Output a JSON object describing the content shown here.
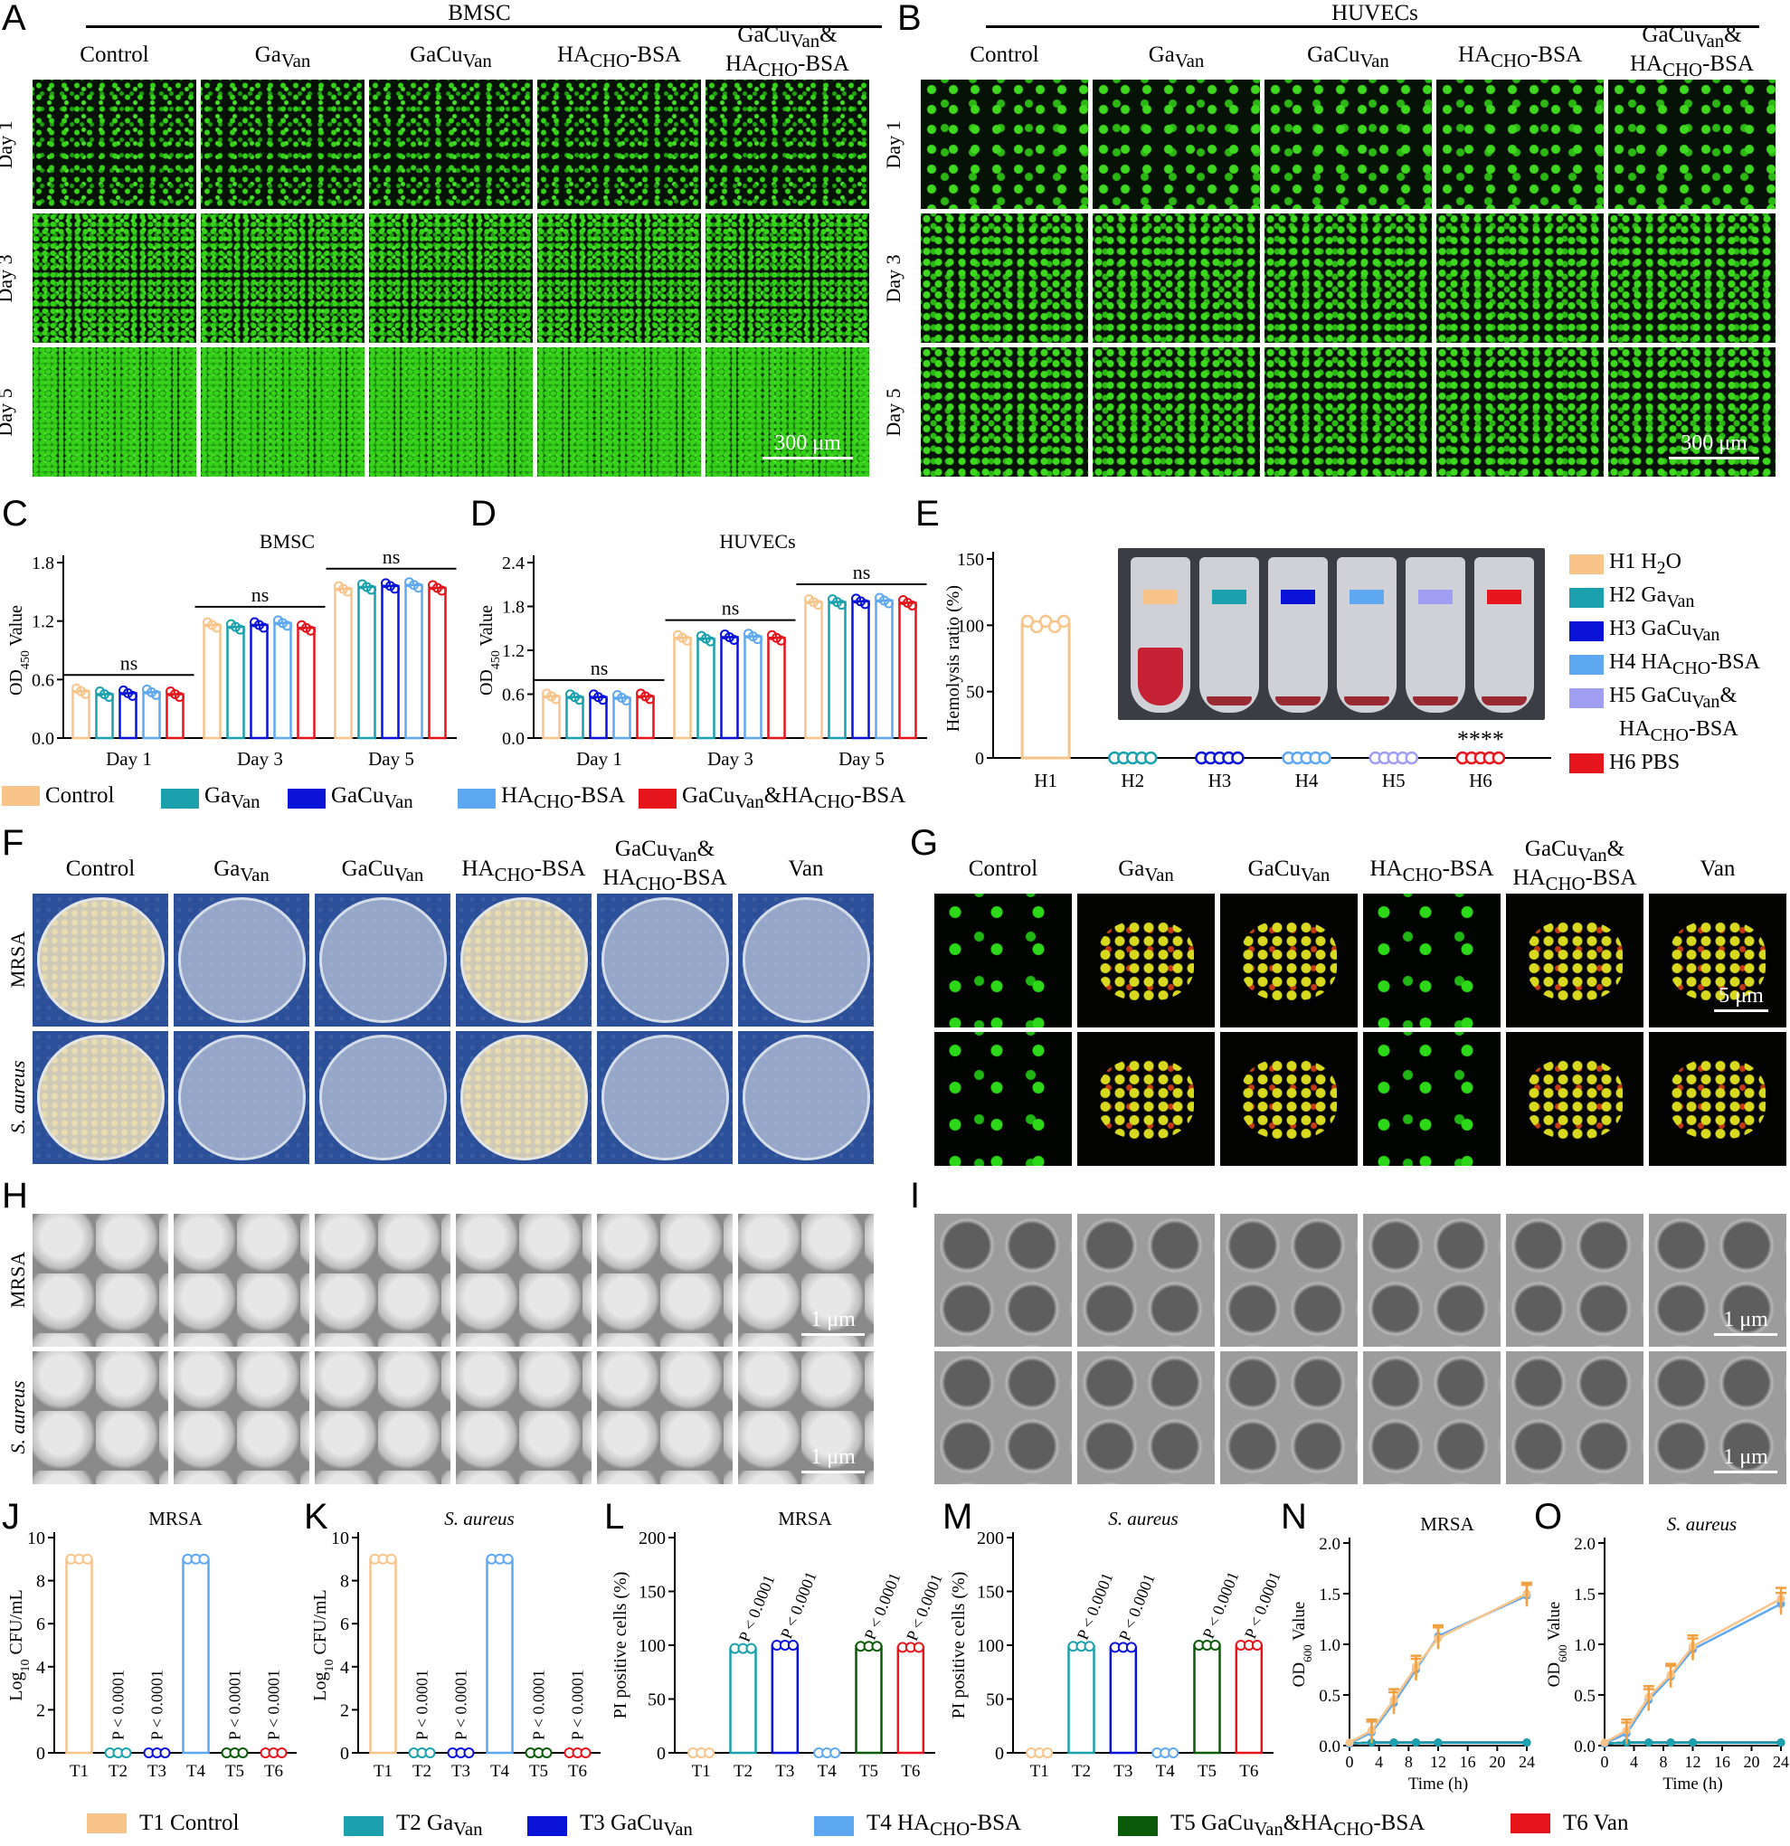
{
  "panels": {
    "A": "A",
    "B": "B",
    "C": "C",
    "D": "D",
    "E": "E",
    "F": "F",
    "G": "G",
    "H": "H",
    "I": "I",
    "J": "J",
    "K": "K",
    "L": "L",
    "M": "M",
    "N": "N",
    "O": "O"
  },
  "panelA": {
    "title": "BMSC",
    "columns": [
      "Control",
      "Ga",
      "GaCu",
      "HA",
      "GaCu&HA"
    ],
    "col_html": [
      "Control",
      "Ga<sub>Van</sub>",
      "GaCu<sub>Van</sub>",
      "HA<sub>CHO</sub>-BSA",
      "GaCu<sub>Van</sub>&amp;<br>HA<sub>CHO</sub>-BSA"
    ],
    "rows": [
      "Day 1",
      "Day 3",
      "Day 5"
    ],
    "scale": "300 μm"
  },
  "panelB": {
    "title": "HUVECs",
    "rows": [
      "Day 1",
      "Day 3",
      "Day 5"
    ],
    "scale": "300 μm"
  },
  "panelC": {
    "title": "BMSC",
    "ylabel": "OD450 Value",
    "ylabel_main": "OD",
    "ylabel_sub": "450",
    "ylabel_tail": " Value",
    "ticks": [
      "0.0",
      "0.6",
      "1.2",
      "1.8"
    ],
    "groups": [
      "Day 1",
      "Day 3",
      "Day 5"
    ],
    "sig": [
      "ns",
      "ns",
      "ns"
    ]
  },
  "panelD": {
    "title": "HUVECs",
    "ticks": [
      "0.0",
      "0.6",
      "1.2",
      "1.8",
      "2.4"
    ],
    "groups": [
      "Day 1",
      "Day 3",
      "Day 5"
    ],
    "sig": [
      "ns",
      "ns",
      "ns"
    ]
  },
  "legendCD": {
    "items": [
      "Control",
      "Ga",
      "GaCu",
      "HA",
      "GaCu&HA"
    ],
    "colors": [
      "#f8c48a",
      "#1aa1ad",
      "#0a12d8",
      "#5ea8f2",
      "#e6141b"
    ]
  },
  "panelE": {
    "ylabel": "Hemolysis ratio (%)",
    "ticks": [
      "0",
      "50",
      "100",
      "150"
    ],
    "categories": [
      "H1",
      "H2",
      "H3",
      "H4",
      "H5",
      "H6"
    ],
    "sig": "****",
    "legend_html": [
      "H1 H<sub>2</sub>O",
      "H2 Ga<sub>Van</sub>",
      "H3 GaCu<sub>Van</sub>",
      "H4 HA<sub>CHO</sub>-BSA",
      "H5 GaCu<sub>Van</sub>&amp;",
      "HA<sub>CHO</sub>-BSA",
      "H6 PBS"
    ],
    "colors": [
      "#f8c48a",
      "#1aa1ad",
      "#0a12d8",
      "#5ea8f2",
      "#a09ef2",
      "#e6141b"
    ]
  },
  "panelF": {
    "columns_html": [
      "Control",
      "Ga<sub>Van</sub>",
      "GaCu<sub>Van</sub>",
      "HA<sub>CHO</sub>-BSA",
      "GaCu<sub>Van</sub>&amp;<br>HA<sub>CHO</sub>-BSA",
      "Van"
    ],
    "rows": [
      "MRSA",
      "S. aureus"
    ]
  },
  "panelG": {
    "scale": "5 μm"
  },
  "panelH": {
    "scale": "1 μm",
    "rows": [
      "MRSA",
      "S. aureus"
    ]
  },
  "panelI": {
    "scale": "1 μm"
  },
  "panelJ": {
    "title": "MRSA",
    "ylabel": "Log10 CFU/mL"
  },
  "panelK": {
    "title": "S. aureus"
  },
  "panelL": {
    "title": "MRSA",
    "ylabel": "PI positive cells (%)"
  },
  "panelM": {
    "title": "S. aureus"
  },
  "panelN": {
    "title": "MRSA",
    "ylabel": "OD600 Value",
    "xlabel": "Time (h)"
  },
  "panelO": {
    "title": "S. aureus",
    "xlabel": "Time (h)"
  },
  "pval": "P < 0.0001",
  "tick_labels": {
    "log": [
      "0",
      "2",
      "4",
      "6",
      "8",
      "10"
    ],
    "pi": [
      "0",
      "50",
      "100",
      "150",
      "200"
    ],
    "od": [
      "0.0",
      "0.5",
      "1.0",
      "1.5",
      "2.0"
    ],
    "time": [
      "0",
      "4",
      "8",
      "12",
      "16",
      "20",
      "24"
    ],
    "T": [
      "T1",
      "T2",
      "T3",
      "T4",
      "T5",
      "T6"
    ]
  },
  "legendBottom": {
    "html": [
      "T1 Control",
      "T2 Ga<sub>Van</sub>",
      "T3 GaCu<sub>Van</sub>",
      "T4 HA<sub>CHO</sub>-BSA",
      "T5 GaCu<sub>Van</sub>&amp;HA<sub>CHO</sub>-BSA",
      "T6 Van"
    ],
    "colors": [
      "#f8c48a",
      "#1aa1ad",
      "#0a12d8",
      "#5ea8f2",
      "#0a5a0a",
      "#e6141b"
    ]
  },
  "chart_data": [
    {
      "type": "bar",
      "id": "C",
      "title": "BMSC",
      "ylabel": "OD450 Value",
      "ylim": [
        0,
        1.8
      ],
      "categories": [
        "Day 1",
        "Day 3",
        "Day 5"
      ],
      "series": [
        {
          "name": "Control",
          "values": [
            0.48,
            1.16,
            1.53
          ]
        },
        {
          "name": "GaVan",
          "values": [
            0.45,
            1.14,
            1.55
          ]
        },
        {
          "name": "GaCuVan",
          "values": [
            0.46,
            1.16,
            1.56
          ]
        },
        {
          "name": "HACHO-BSA",
          "values": [
            0.47,
            1.18,
            1.57
          ]
        },
        {
          "name": "GaCuVan&HACHO-BSA",
          "values": [
            0.45,
            1.13,
            1.54
          ]
        }
      ]
    },
    {
      "type": "bar",
      "id": "D",
      "title": "HUVECs",
      "ylabel": "OD450 Value",
      "ylim": [
        0,
        2.4
      ],
      "categories": [
        "Day 1",
        "Day 3",
        "Day 5"
      ],
      "series": [
        {
          "name": "Control",
          "values": [
            0.57,
            1.37,
            1.86
          ]
        },
        {
          "name": "GaVan",
          "values": [
            0.56,
            1.36,
            1.86
          ]
        },
        {
          "name": "GaCuVan",
          "values": [
            0.56,
            1.38,
            1.87
          ]
        },
        {
          "name": "HACHO-BSA",
          "values": [
            0.55,
            1.39,
            1.88
          ]
        },
        {
          "name": "GaCuVan&HACHO-BSA",
          "values": [
            0.57,
            1.37,
            1.85
          ]
        }
      ]
    },
    {
      "type": "bar",
      "id": "E",
      "ylabel": "Hemolysis ratio (%)",
      "ylim": [
        0,
        150
      ],
      "categories": [
        "H1",
        "H2",
        "H3",
        "H4",
        "H5",
        "H6"
      ],
      "values": [
        101,
        0,
        0,
        0,
        0,
        0
      ]
    },
    {
      "type": "bar",
      "id": "J",
      "title": "MRSA",
      "ylabel": "Log10 CFU/mL",
      "ylim": [
        0,
        10
      ],
      "categories": [
        "T1",
        "T2",
        "T3",
        "T4",
        "T5",
        "T6"
      ],
      "values": [
        9,
        0,
        0,
        9,
        0,
        0
      ]
    },
    {
      "type": "bar",
      "id": "K",
      "title": "S. aureus",
      "ylabel": "Log10 CFU/mL",
      "ylim": [
        0,
        10
      ],
      "categories": [
        "T1",
        "T2",
        "T3",
        "T4",
        "T5",
        "T6"
      ],
      "values": [
        9,
        0,
        0,
        9,
        0,
        0
      ]
    },
    {
      "type": "bar",
      "id": "L",
      "title": "MRSA",
      "ylabel": "PI positive cells (%)",
      "ylim": [
        0,
        200
      ],
      "categories": [
        "T1",
        "T2",
        "T3",
        "T4",
        "T5",
        "T6"
      ],
      "values": [
        0,
        97,
        100,
        0,
        99,
        98
      ]
    },
    {
      "type": "bar",
      "id": "M",
      "title": "S. aureus",
      "ylabel": "PI positive cells (%)",
      "ylim": [
        0,
        200
      ],
      "categories": [
        "T1",
        "T2",
        "T3",
        "T4",
        "T5",
        "T6"
      ],
      "values": [
        0,
        99,
        98,
        0,
        100,
        100
      ]
    },
    {
      "type": "line",
      "id": "N",
      "title": "MRSA",
      "xlabel": "Time (h)",
      "ylabel": "OD600 Value",
      "xlim": [
        0,
        24
      ],
      "ylim": [
        0,
        2
      ],
      "x": [
        0,
        3,
        6,
        9,
        12,
        24
      ],
      "series": [
        {
          "name": "T1 Control",
          "values": [
            0.03,
            0.15,
            0.45,
            0.78,
            1.06,
            1.5
          ]
        },
        {
          "name": "T4 HACHO-BSA",
          "values": [
            0.02,
            0.13,
            0.42,
            0.75,
            1.08,
            1.48
          ]
        },
        {
          "name": "T2 GaVan",
          "values": [
            0.02,
            0.03,
            0.03,
            0.03,
            0.03,
            0.03
          ]
        },
        {
          "name": "T3 GaCuVan",
          "values": [
            0.02,
            0.03,
            0.03,
            0.03,
            0.03,
            0.03
          ]
        },
        {
          "name": "T5 GaCuVan&HACHO-BSA",
          "values": [
            0.02,
            0.03,
            0.03,
            0.03,
            0.03,
            0.03
          ]
        },
        {
          "name": "T6 Van",
          "values": [
            0.02,
            0.03,
            0.03,
            0.03,
            0.03,
            0.03
          ]
        }
      ]
    },
    {
      "type": "line",
      "id": "O",
      "title": "S. aureus",
      "xlabel": "Time (h)",
      "ylabel": "OD600 Value",
      "xlim": [
        0,
        24
      ],
      "ylim": [
        0,
        2
      ],
      "x": [
        0,
        3,
        6,
        9,
        12,
        24
      ],
      "series": [
        {
          "name": "T1 Control",
          "values": [
            0.03,
            0.15,
            0.48,
            0.7,
            0.98,
            1.45
          ]
        },
        {
          "name": "T4 HACHO-BSA",
          "values": [
            0.02,
            0.12,
            0.45,
            0.68,
            0.95,
            1.4
          ]
        },
        {
          "name": "T2 GaVan",
          "values": [
            0.02,
            0.03,
            0.03,
            0.03,
            0.03,
            0.03
          ]
        },
        {
          "name": "T3 GaCuVan",
          "values": [
            0.02,
            0.03,
            0.03,
            0.03,
            0.03,
            0.03
          ]
        },
        {
          "name": "T5 GaCuVan&HACHO-BSA",
          "values": [
            0.02,
            0.03,
            0.03,
            0.03,
            0.03,
            0.03
          ]
        },
        {
          "name": "T6 Van",
          "values": [
            0.02,
            0.03,
            0.03,
            0.03,
            0.03,
            0.03
          ]
        }
      ]
    }
  ]
}
